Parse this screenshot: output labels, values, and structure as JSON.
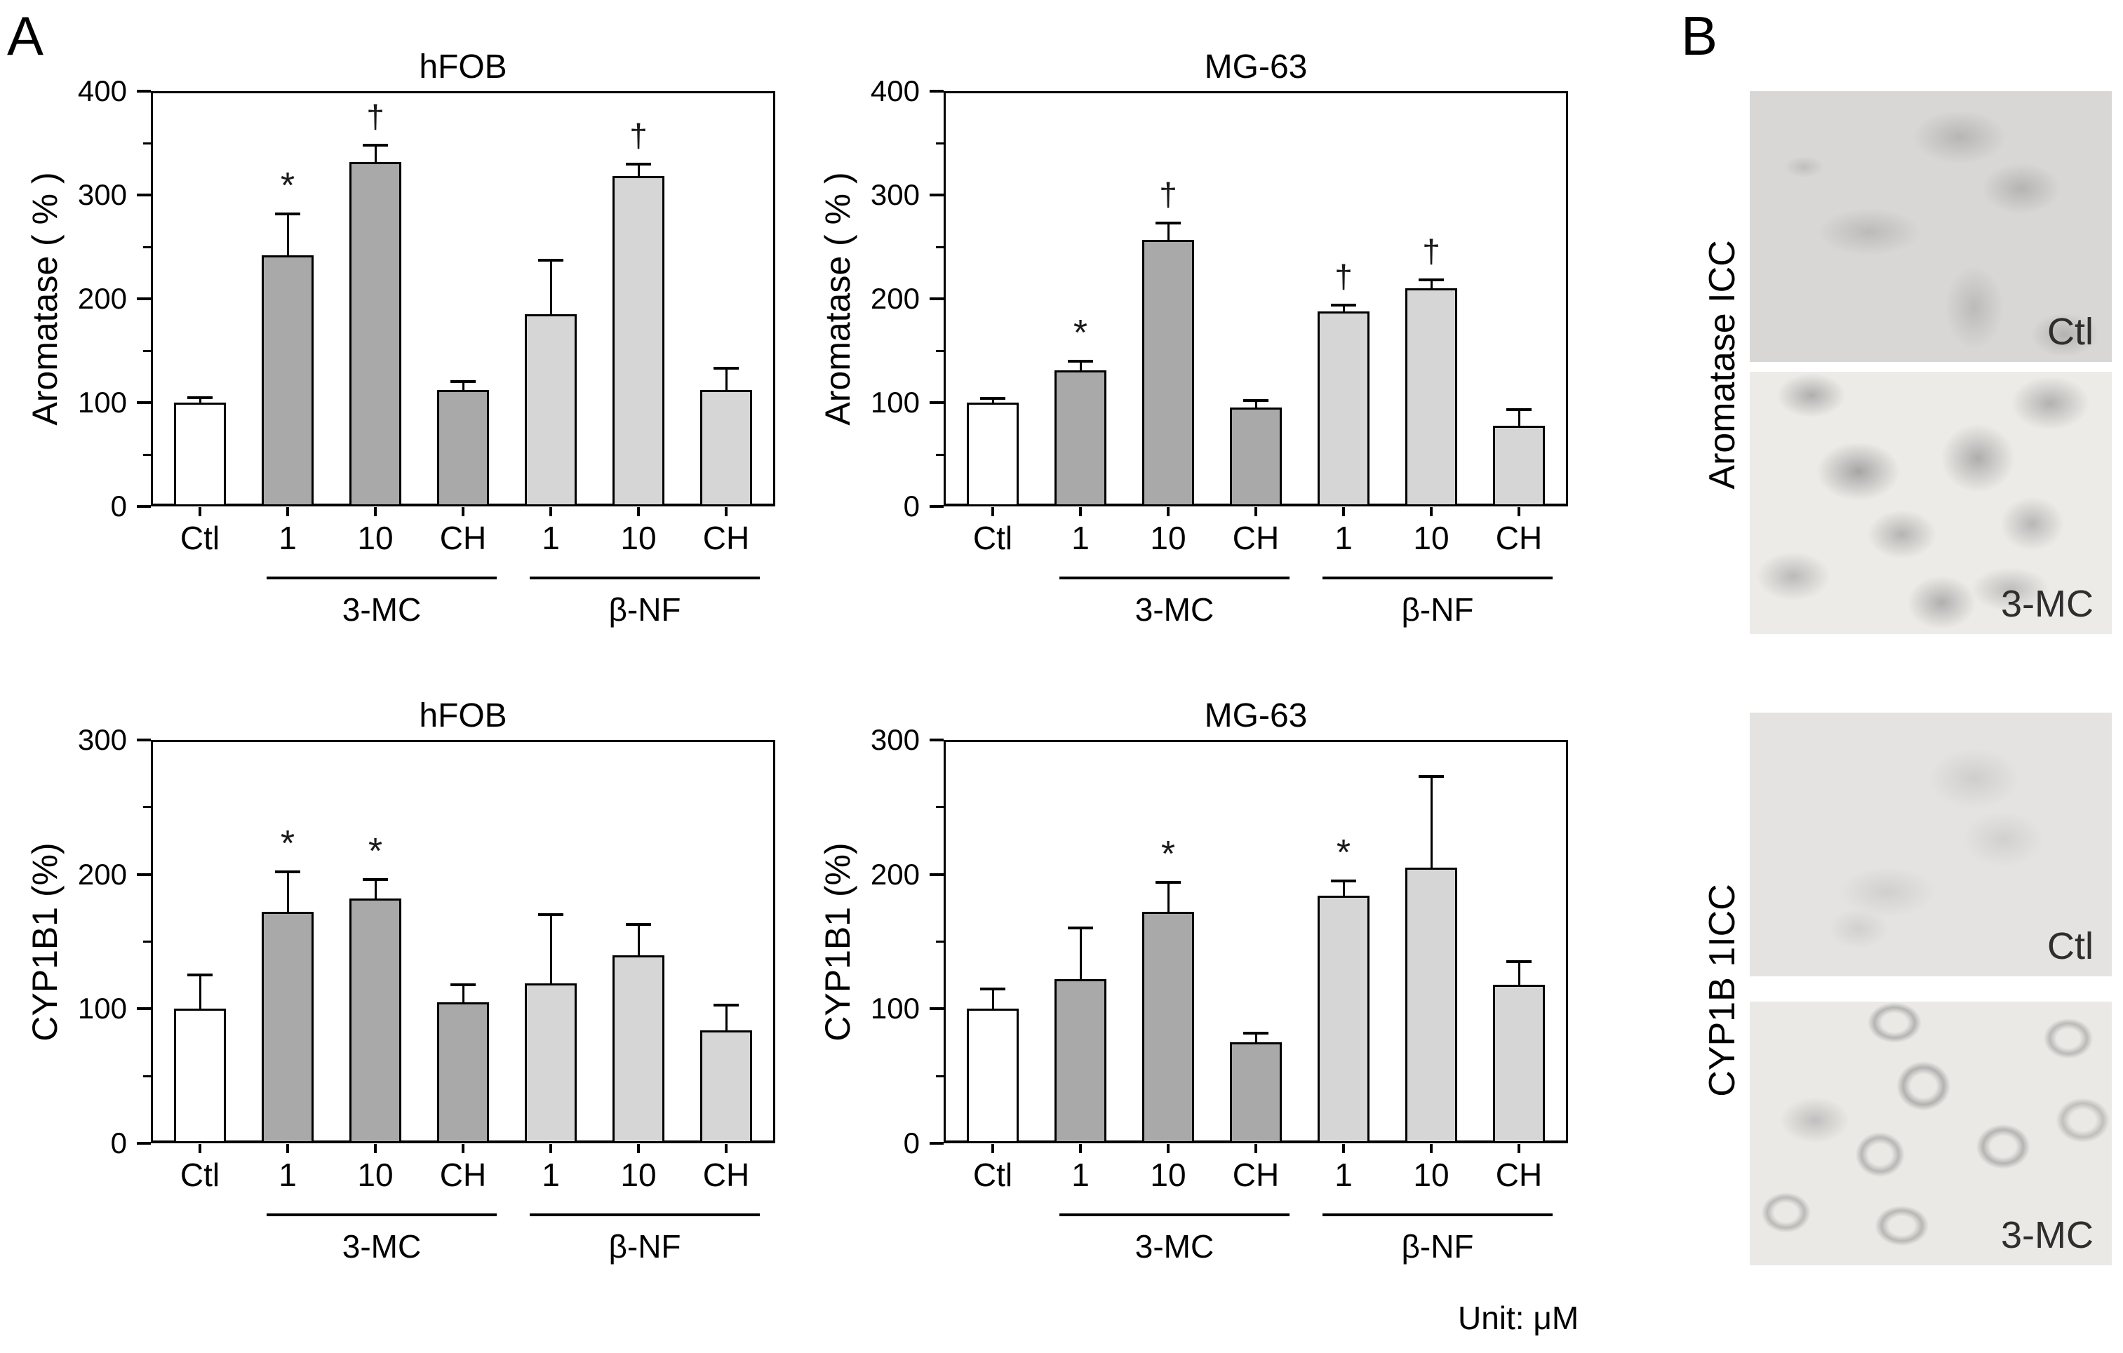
{
  "figure": {
    "panel_a_label": "A",
    "panel_b_label": "B",
    "unit_note": "Unit: μM"
  },
  "chart_data": [
    {
      "id": "hfob-aromatase",
      "type": "bar",
      "title": "hFOB",
      "ylabel": "Aromatase ( % )",
      "ylim": [
        0,
        400
      ],
      "yticks": [
        0,
        100,
        200,
        300,
        400
      ],
      "minor_tick_step": 50,
      "grid": false,
      "categories": [
        "Ctl",
        "1",
        "10",
        "CH",
        "1",
        "10",
        "CH"
      ],
      "values": [
        100,
        242,
        332,
        112,
        185,
        318,
        112
      ],
      "errors": [
        5,
        40,
        16,
        8,
        52,
        12,
        21
      ],
      "sig": [
        "",
        "*",
        "†",
        "",
        "",
        "†",
        ""
      ],
      "bar_colors": [
        "#ffffff",
        "#a9a9a9",
        "#a9a9a9",
        "#a9a9a9",
        "#d6d6d6",
        "#d6d6d6",
        "#d6d6d6"
      ],
      "groups": [
        {
          "label": "3-MC",
          "from": 1,
          "to": 3
        },
        {
          "label": "β-NF",
          "from": 4,
          "to": 6
        }
      ]
    },
    {
      "id": "mg63-aromatase",
      "type": "bar",
      "title": "MG-63",
      "ylabel": "Aromatase ( % )",
      "ylim": [
        0,
        400
      ],
      "yticks": [
        0,
        100,
        200,
        300,
        400
      ],
      "minor_tick_step": 50,
      "grid": false,
      "categories": [
        "Ctl",
        "1",
        "10",
        "CH",
        "1",
        "10",
        "CH"
      ],
      "values": [
        100,
        131,
        257,
        95,
        188,
        210,
        78
      ],
      "errors": [
        4,
        9,
        16,
        7,
        6,
        8,
        15
      ],
      "sig": [
        "",
        "*",
        "†",
        "",
        "†",
        "†",
        ""
      ],
      "bar_colors": [
        "#ffffff",
        "#a9a9a9",
        "#a9a9a9",
        "#a9a9a9",
        "#d6d6d6",
        "#d6d6d6",
        "#d6d6d6"
      ],
      "groups": [
        {
          "label": "3-MC",
          "from": 1,
          "to": 3
        },
        {
          "label": "β-NF",
          "from": 4,
          "to": 6
        }
      ]
    },
    {
      "id": "hfob-cyp1b1",
      "type": "bar",
      "title": "hFOB",
      "ylabel": "CYP1B1 (%)",
      "ylim": [
        0,
        300
      ],
      "yticks": [
        0,
        100,
        200,
        300
      ],
      "minor_tick_step": 50,
      "grid": false,
      "categories": [
        "Ctl",
        "1",
        "10",
        "CH",
        "1",
        "10",
        "CH"
      ],
      "values": [
        100,
        172,
        182,
        105,
        119,
        140,
        84
      ],
      "errors": [
        25,
        30,
        14,
        13,
        51,
        23,
        19
      ],
      "sig": [
        "",
        "*",
        "*",
        "",
        "",
        "",
        ""
      ],
      "bar_colors": [
        "#ffffff",
        "#a9a9a9",
        "#a9a9a9",
        "#a9a9a9",
        "#d6d6d6",
        "#d6d6d6",
        "#d6d6d6"
      ],
      "groups": [
        {
          "label": "3-MC",
          "from": 1,
          "to": 3
        },
        {
          "label": "β-NF",
          "from": 4,
          "to": 6
        }
      ]
    },
    {
      "id": "mg63-cyp1b1",
      "type": "bar",
      "title": "MG-63",
      "ylabel": "CYP1B1 (%)",
      "ylim": [
        0,
        300
      ],
      "yticks": [
        0,
        100,
        200,
        300
      ],
      "minor_tick_step": 50,
      "grid": false,
      "categories": [
        "Ctl",
        "1",
        "10",
        "CH",
        "1",
        "10",
        "CH"
      ],
      "values": [
        100,
        122,
        172,
        75,
        184,
        205,
        118
      ],
      "errors": [
        15,
        38,
        22,
        7,
        11,
        68,
        17
      ],
      "sig": [
        "",
        "",
        "*",
        "",
        "*",
        "",
        ""
      ],
      "bar_colors": [
        "#ffffff",
        "#a9a9a9",
        "#a9a9a9",
        "#a9a9a9",
        "#d6d6d6",
        "#d6d6d6",
        "#d6d6d6"
      ],
      "groups": [
        {
          "label": "3-MC",
          "from": 1,
          "to": 3
        },
        {
          "label": "β-NF",
          "from": 4,
          "to": 6
        }
      ]
    }
  ],
  "panel_b": {
    "rows": [
      {
        "side_label": "Aromatase ICC",
        "images": [
          {
            "corner_label": "Ctl"
          },
          {
            "corner_label": "3-MC"
          }
        ]
      },
      {
        "side_label": "CYP1B 1ICC",
        "images": [
          {
            "corner_label": "Ctl"
          },
          {
            "corner_label": "3-MC"
          }
        ]
      }
    ]
  }
}
